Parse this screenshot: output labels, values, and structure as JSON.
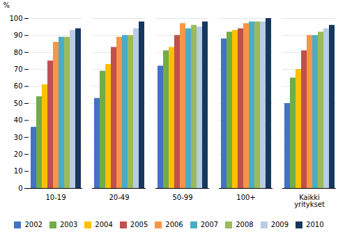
{
  "chart_data": {
    "type": "bar",
    "categories": [
      "10-19",
      "20-49",
      "50-99",
      "100+",
      "Kaikki\nyritykset"
    ],
    "series": [
      {
        "name": "2002",
        "color": "#4472c4",
        "values": [
          36,
          53,
          72,
          88,
          50
        ]
      },
      {
        "name": "2003",
        "color": "#70ad47",
        "values": [
          54,
          69,
          81,
          92,
          65
        ]
      },
      {
        "name": "2004",
        "color": "#ffc000",
        "values": [
          61,
          73,
          83,
          93,
          70
        ]
      },
      {
        "name": "2005",
        "color": "#c0504d",
        "values": [
          75,
          83,
          90,
          94,
          81
        ]
      },
      {
        "name": "2006",
        "color": "#f79646",
        "values": [
          86,
          89,
          97,
          97,
          90
        ]
      },
      {
        "name": "2007",
        "color": "#4bacc6",
        "values": [
          89,
          90,
          94,
          98,
          90
        ]
      },
      {
        "name": "2008",
        "color": "#9bbb59",
        "values": [
          89,
          90,
          96,
          98,
          92
        ]
      },
      {
        "name": "2009",
        "color": "#b8cce4",
        "values": [
          93,
          94,
          95,
          98,
          94
        ]
      },
      {
        "name": "2010",
        "color": "#17375e",
        "values": [
          94,
          98,
          98,
          100,
          96
        ]
      }
    ],
    "ylabel": "%",
    "ylim": [
      0,
      100
    ],
    "yticks": [
      0,
      10,
      20,
      30,
      40,
      50,
      60,
      70,
      80,
      90,
      100
    ],
    "grid": true,
    "legend": "bottom"
  }
}
